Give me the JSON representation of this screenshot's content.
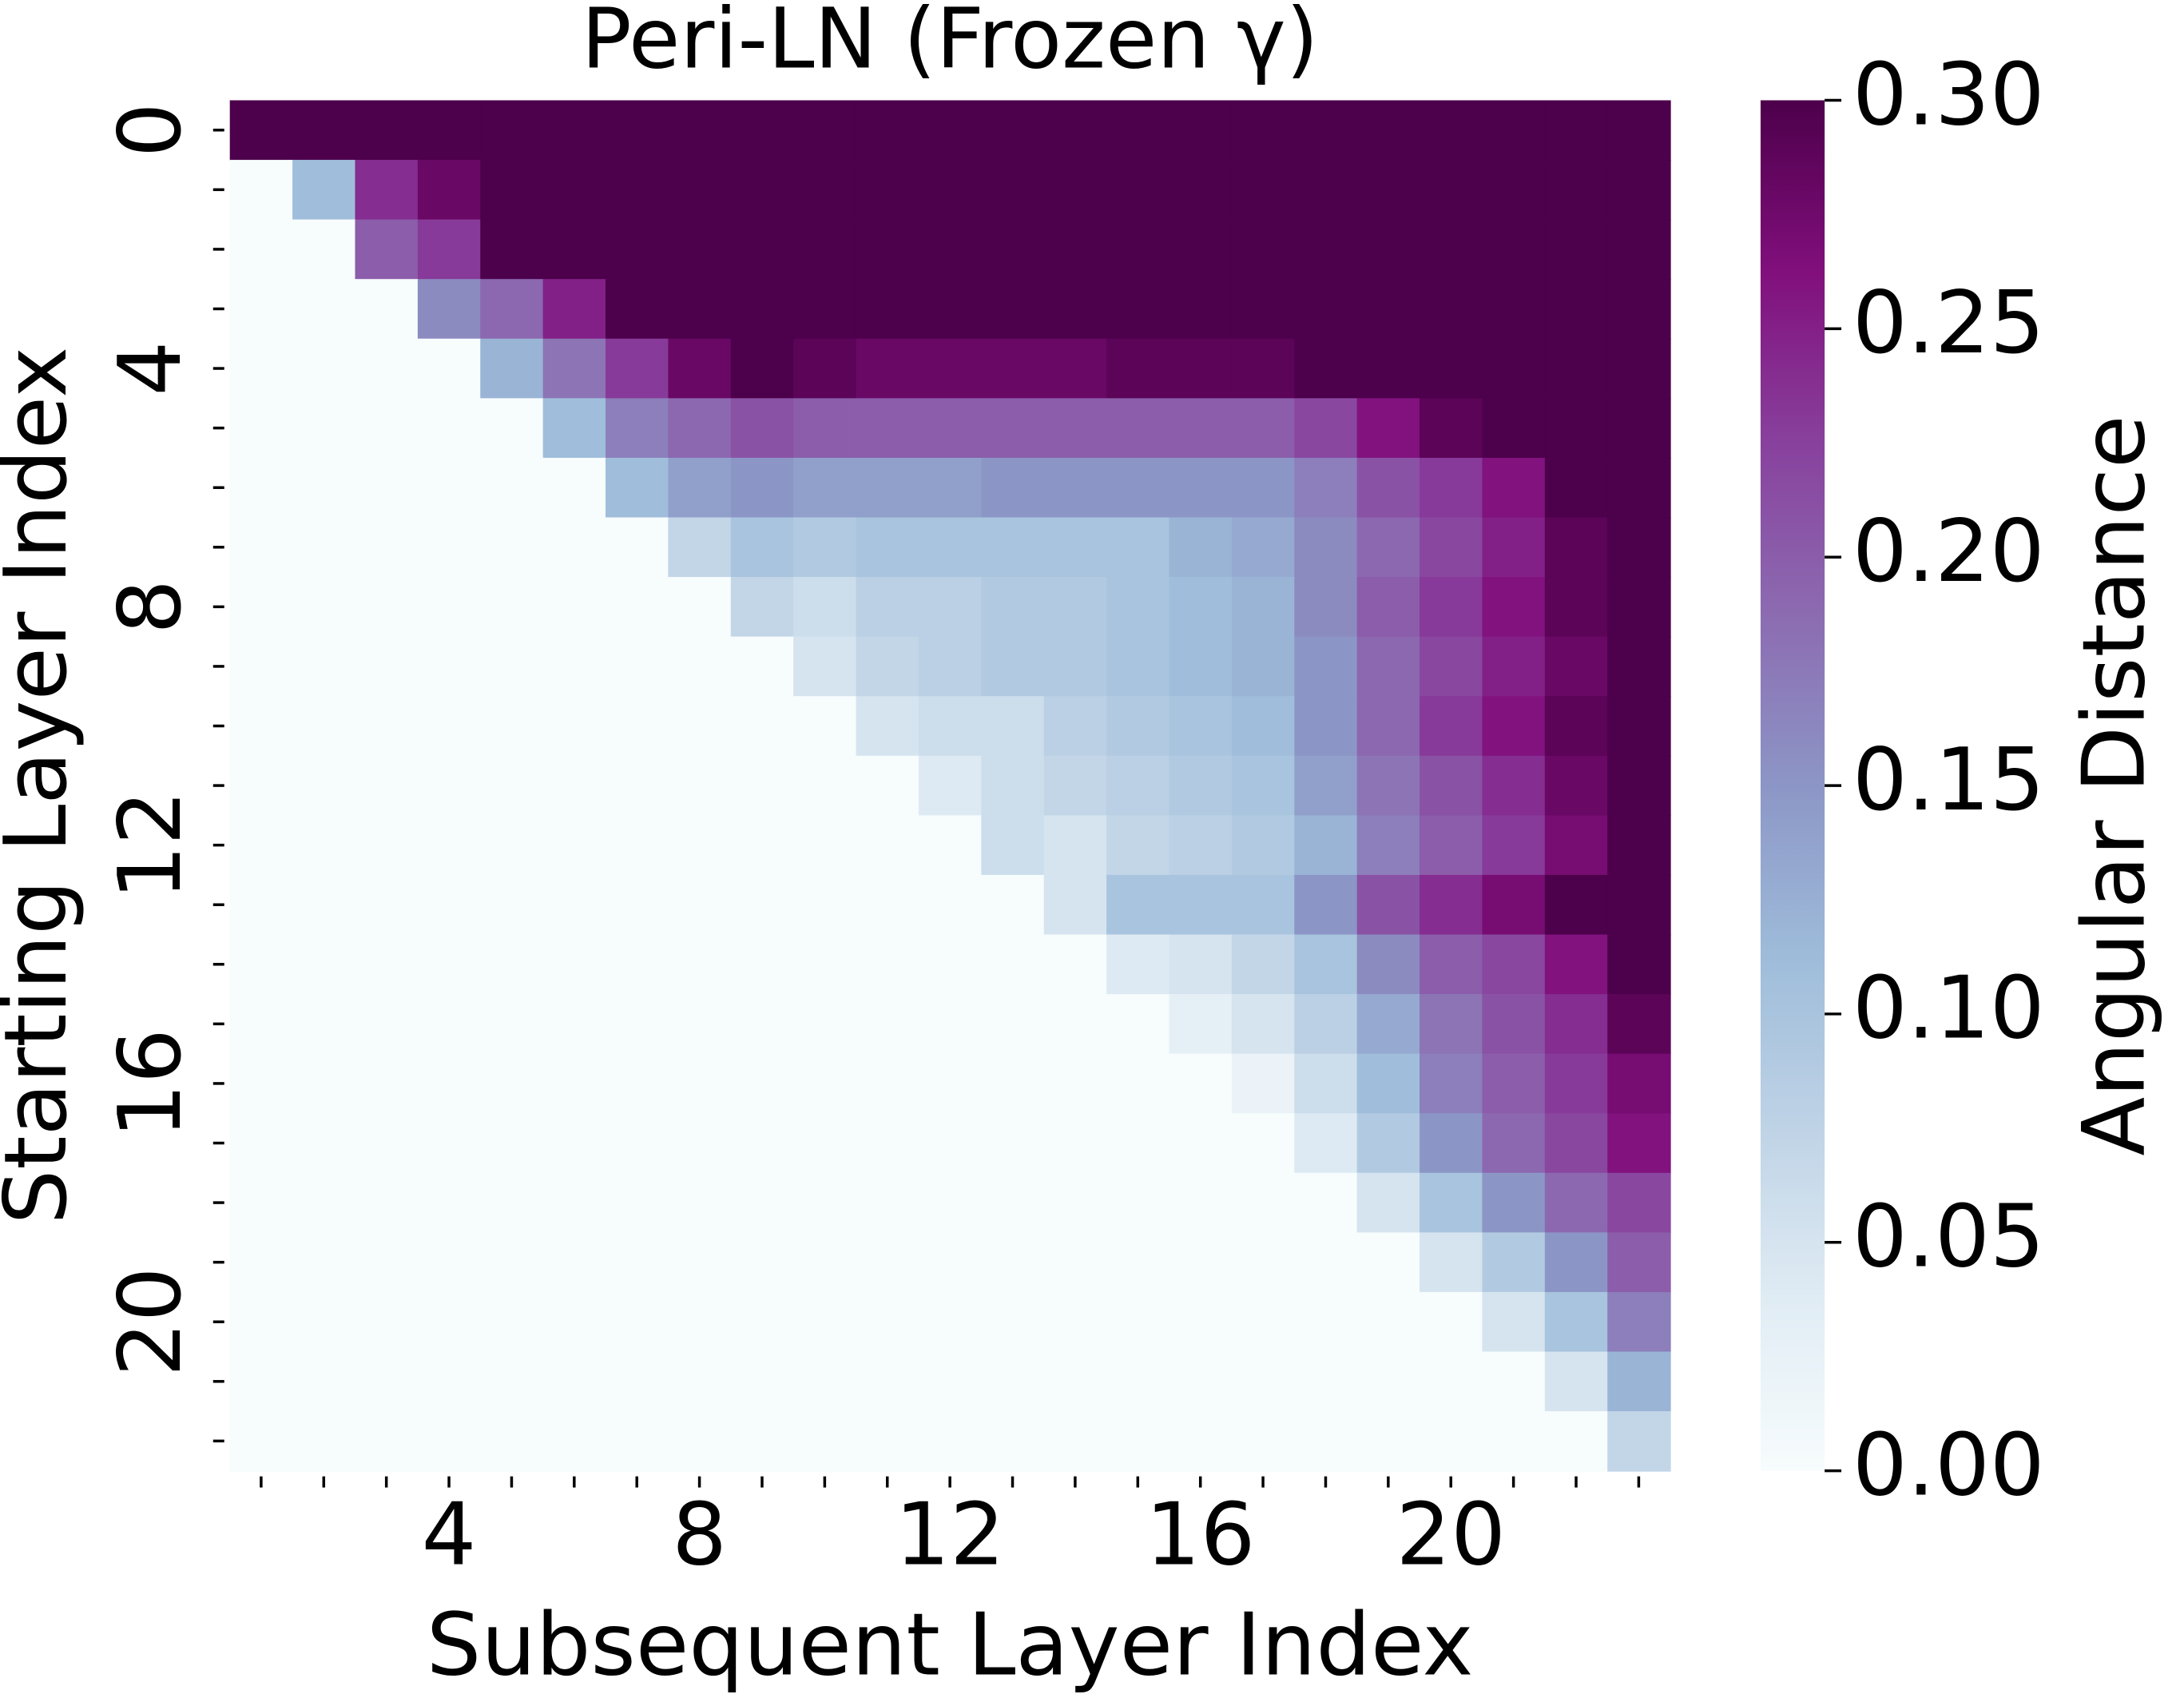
{
  "chart_data": {
    "type": "heatmap",
    "title": "Peri-LN (Frozen γ)",
    "x_label": "Subsequent Layer Index",
    "y_label": "Starting Layer Index",
    "x_categories": [
      null,
      null,
      null,
      4,
      null,
      null,
      null,
      8,
      null,
      null,
      null,
      12,
      null,
      null,
      null,
      16,
      null,
      null,
      null,
      20,
      null,
      null,
      null
    ],
    "y_categories": [
      0,
      null,
      null,
      null,
      4,
      null,
      null,
      null,
      8,
      null,
      null,
      null,
      12,
      null,
      null,
      null,
      16,
      null,
      null,
      null,
      20,
      null,
      null
    ],
    "colormap": [
      "#f7fcfd",
      "#e0ecf4",
      "#bfd3e6",
      "#9ebcda",
      "#8c96c6",
      "#8c6bb1",
      "#88419d",
      "#810f7c",
      "#4d004b"
    ],
    "colorbar": {
      "label": "Angular Distance",
      "lim": [
        0,
        0.3
      ],
      "ticks": [
        {
          "value": 0,
          "label": "0.00"
        },
        {
          "value": 0.05,
          "label": "0.05"
        },
        {
          "value": 0.1,
          "label": "0.10"
        },
        {
          "value": 0.15,
          "label": "0.15"
        },
        {
          "value": 0.2,
          "label": "0.20"
        },
        {
          "value": 0.25,
          "label": "0.25"
        },
        {
          "value": 0.3,
          "label": "0.30"
        }
      ]
    },
    "values": [
      [
        0.3,
        0.3,
        0.3,
        0.3,
        0.3,
        0.3,
        0.3,
        0.3,
        0.3,
        0.3,
        0.3,
        0.3,
        0.3,
        0.3,
        0.3,
        0.3,
        0.3,
        0.3,
        0.3,
        0.3,
        0.3,
        0.3,
        0.3
      ],
      [
        0,
        0.11,
        0.24,
        0.28,
        0.3,
        0.3,
        0.3,
        0.3,
        0.3,
        0.3,
        0.3,
        0.3,
        0.3,
        0.3,
        0.3,
        0.3,
        0.3,
        0.3,
        0.3,
        0.3,
        0.3,
        0.3,
        0.3
      ],
      [
        0,
        0,
        0.2,
        0.23,
        0.3,
        0.3,
        0.3,
        0.3,
        0.3,
        0.3,
        0.3,
        0.3,
        0.3,
        0.3,
        0.3,
        0.3,
        0.3,
        0.3,
        0.3,
        0.3,
        0.3,
        0.3,
        0.3
      ],
      [
        0,
        0,
        0,
        0.16,
        0.19,
        0.25,
        0.3,
        0.3,
        0.3,
        0.3,
        0.3,
        0.3,
        0.3,
        0.3,
        0.3,
        0.3,
        0.3,
        0.3,
        0.3,
        0.3,
        0.3,
        0.3,
        0.3
      ],
      [
        0,
        0,
        0,
        0,
        0.12,
        0.18,
        0.23,
        0.28,
        0.3,
        0.29,
        0.28,
        0.28,
        0.28,
        0.28,
        0.29,
        0.29,
        0.29,
        0.3,
        0.3,
        0.3,
        0.3,
        0.3,
        0.3
      ],
      [
        0,
        0,
        0,
        0,
        0,
        0.11,
        0.17,
        0.19,
        0.21,
        0.2,
        0.2,
        0.2,
        0.2,
        0.2,
        0.2,
        0.2,
        0.2,
        0.22,
        0.26,
        0.29,
        0.3,
        0.3,
        0.3
      ],
      [
        0,
        0,
        0,
        0,
        0,
        0,
        0.11,
        0.14,
        0.15,
        0.14,
        0.14,
        0.14,
        0.15,
        0.15,
        0.15,
        0.15,
        0.15,
        0.17,
        0.21,
        0.23,
        0.26,
        0.3,
        0.3
      ],
      [
        0,
        0,
        0,
        0,
        0,
        0,
        0,
        0.07,
        0.1,
        0.09,
        0.1,
        0.1,
        0.1,
        0.1,
        0.1,
        0.12,
        0.13,
        0.16,
        0.19,
        0.22,
        0.25,
        0.29,
        0.3
      ],
      [
        0,
        0,
        0,
        0,
        0,
        0,
        0,
        0,
        0.07,
        0.06,
        0.08,
        0.08,
        0.09,
        0.09,
        0.1,
        0.11,
        0.12,
        0.16,
        0.2,
        0.23,
        0.26,
        0.29,
        0.3
      ],
      [
        0,
        0,
        0,
        0,
        0,
        0,
        0,
        0,
        0,
        0.05,
        0.07,
        0.08,
        0.09,
        0.09,
        0.1,
        0.11,
        0.12,
        0.15,
        0.19,
        0.22,
        0.25,
        0.28,
        0.3
      ],
      [
        0,
        0,
        0,
        0,
        0,
        0,
        0,
        0,
        0,
        0,
        0.05,
        0.06,
        0.06,
        0.08,
        0.09,
        0.1,
        0.11,
        0.15,
        0.19,
        0.23,
        0.26,
        0.29,
        0.3
      ],
      [
        0,
        0,
        0,
        0,
        0,
        0,
        0,
        0,
        0,
        0,
        0,
        0.04,
        0.06,
        0.07,
        0.08,
        0.09,
        0.1,
        0.14,
        0.18,
        0.21,
        0.24,
        0.28,
        0.3
      ],
      [
        0,
        0,
        0,
        0,
        0,
        0,
        0,
        0,
        0,
        0,
        0,
        0,
        0.06,
        0.05,
        0.07,
        0.08,
        0.09,
        0.12,
        0.17,
        0.2,
        0.23,
        0.27,
        0.3
      ],
      [
        0,
        0,
        0,
        0,
        0,
        0,
        0,
        0,
        0,
        0,
        0,
        0,
        0,
        0.05,
        0.1,
        0.1,
        0.1,
        0.15,
        0.21,
        0.24,
        0.27,
        0.3,
        0.3
      ],
      [
        0,
        0,
        0,
        0,
        0,
        0,
        0,
        0,
        0,
        0,
        0,
        0,
        0,
        0,
        0.04,
        0.05,
        0.07,
        0.1,
        0.16,
        0.2,
        0.22,
        0.26,
        0.3
      ],
      [
        0,
        0,
        0,
        0,
        0,
        0,
        0,
        0,
        0,
        0,
        0,
        0,
        0,
        0,
        0,
        0.03,
        0.05,
        0.08,
        0.13,
        0.18,
        0.21,
        0.24,
        0.29
      ],
      [
        0,
        0,
        0,
        0,
        0,
        0,
        0,
        0,
        0,
        0,
        0,
        0,
        0,
        0,
        0,
        0,
        0.02,
        0.06,
        0.11,
        0.17,
        0.2,
        0.23,
        0.27
      ],
      [
        0,
        0,
        0,
        0,
        0,
        0,
        0,
        0,
        0,
        0,
        0,
        0,
        0,
        0,
        0,
        0,
        0,
        0.04,
        0.09,
        0.15,
        0.19,
        0.22,
        0.26
      ],
      [
        0,
        0,
        0,
        0,
        0,
        0,
        0,
        0,
        0,
        0,
        0,
        0,
        0,
        0,
        0,
        0,
        0,
        0,
        0.05,
        0.1,
        0.15,
        0.19,
        0.22
      ],
      [
        0,
        0,
        0,
        0,
        0,
        0,
        0,
        0,
        0,
        0,
        0,
        0,
        0,
        0,
        0,
        0,
        0,
        0,
        0,
        0.05,
        0.09,
        0.15,
        0.2
      ],
      [
        0,
        0,
        0,
        0,
        0,
        0,
        0,
        0,
        0,
        0,
        0,
        0,
        0,
        0,
        0,
        0,
        0,
        0,
        0,
        0,
        0.05,
        0.1,
        0.17
      ],
      [
        0,
        0,
        0,
        0,
        0,
        0,
        0,
        0,
        0,
        0,
        0,
        0,
        0,
        0,
        0,
        0,
        0,
        0,
        0,
        0,
        0,
        0.05,
        0.12
      ],
      [
        0,
        0,
        0,
        0,
        0,
        0,
        0,
        0,
        0,
        0,
        0,
        0,
        0,
        0,
        0,
        0,
        0,
        0,
        0,
        0,
        0,
        0,
        0.07
      ]
    ]
  }
}
